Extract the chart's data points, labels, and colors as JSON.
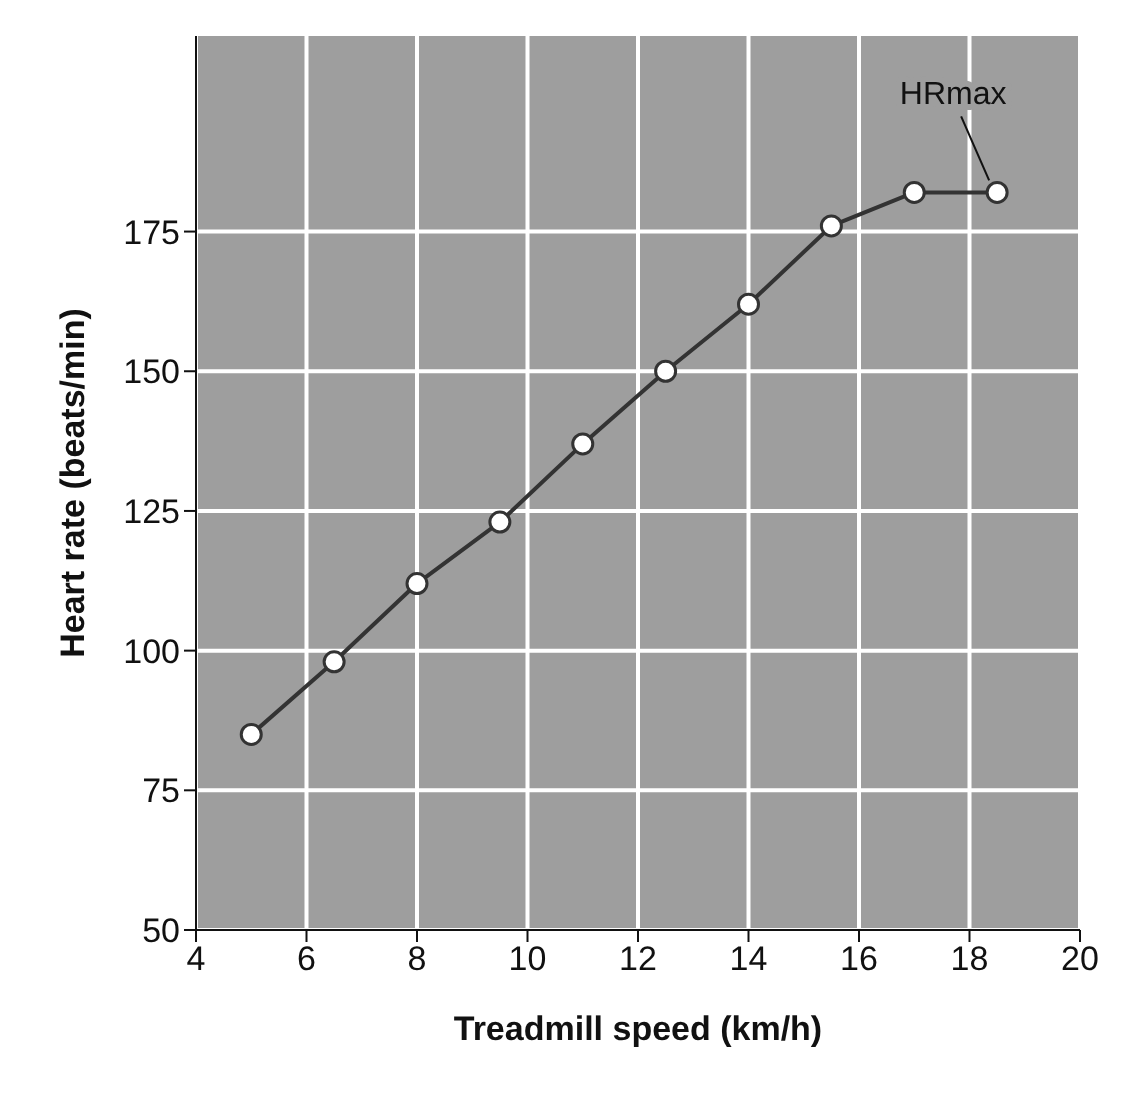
{
  "chart_data": {
    "type": "line",
    "xlabel": "Treadmill speed (km/h)",
    "ylabel": "Heart rate (beats/min)",
    "x": [
      5,
      6.5,
      8,
      9.5,
      11,
      12.5,
      14,
      15.5,
      17,
      18.5
    ],
    "series": [
      {
        "color": "#333333",
        "values": [
          85,
          98,
          112,
          123,
          137,
          150,
          162,
          176,
          182,
          182
        ]
      }
    ],
    "xlim": [
      4,
      20
    ],
    "xticks": [
      4,
      6,
      8,
      10,
      12,
      14,
      16,
      18,
      20
    ],
    "ylim": [
      50,
      210
    ],
    "yticks": [
      50,
      75,
      100,
      125,
      150,
      175
    ],
    "grid": true,
    "marker": "circle",
    "line_style": "solid",
    "annotations": [
      {
        "text": "HRmax",
        "x": 18.5,
        "y": 182
      }
    ]
  }
}
